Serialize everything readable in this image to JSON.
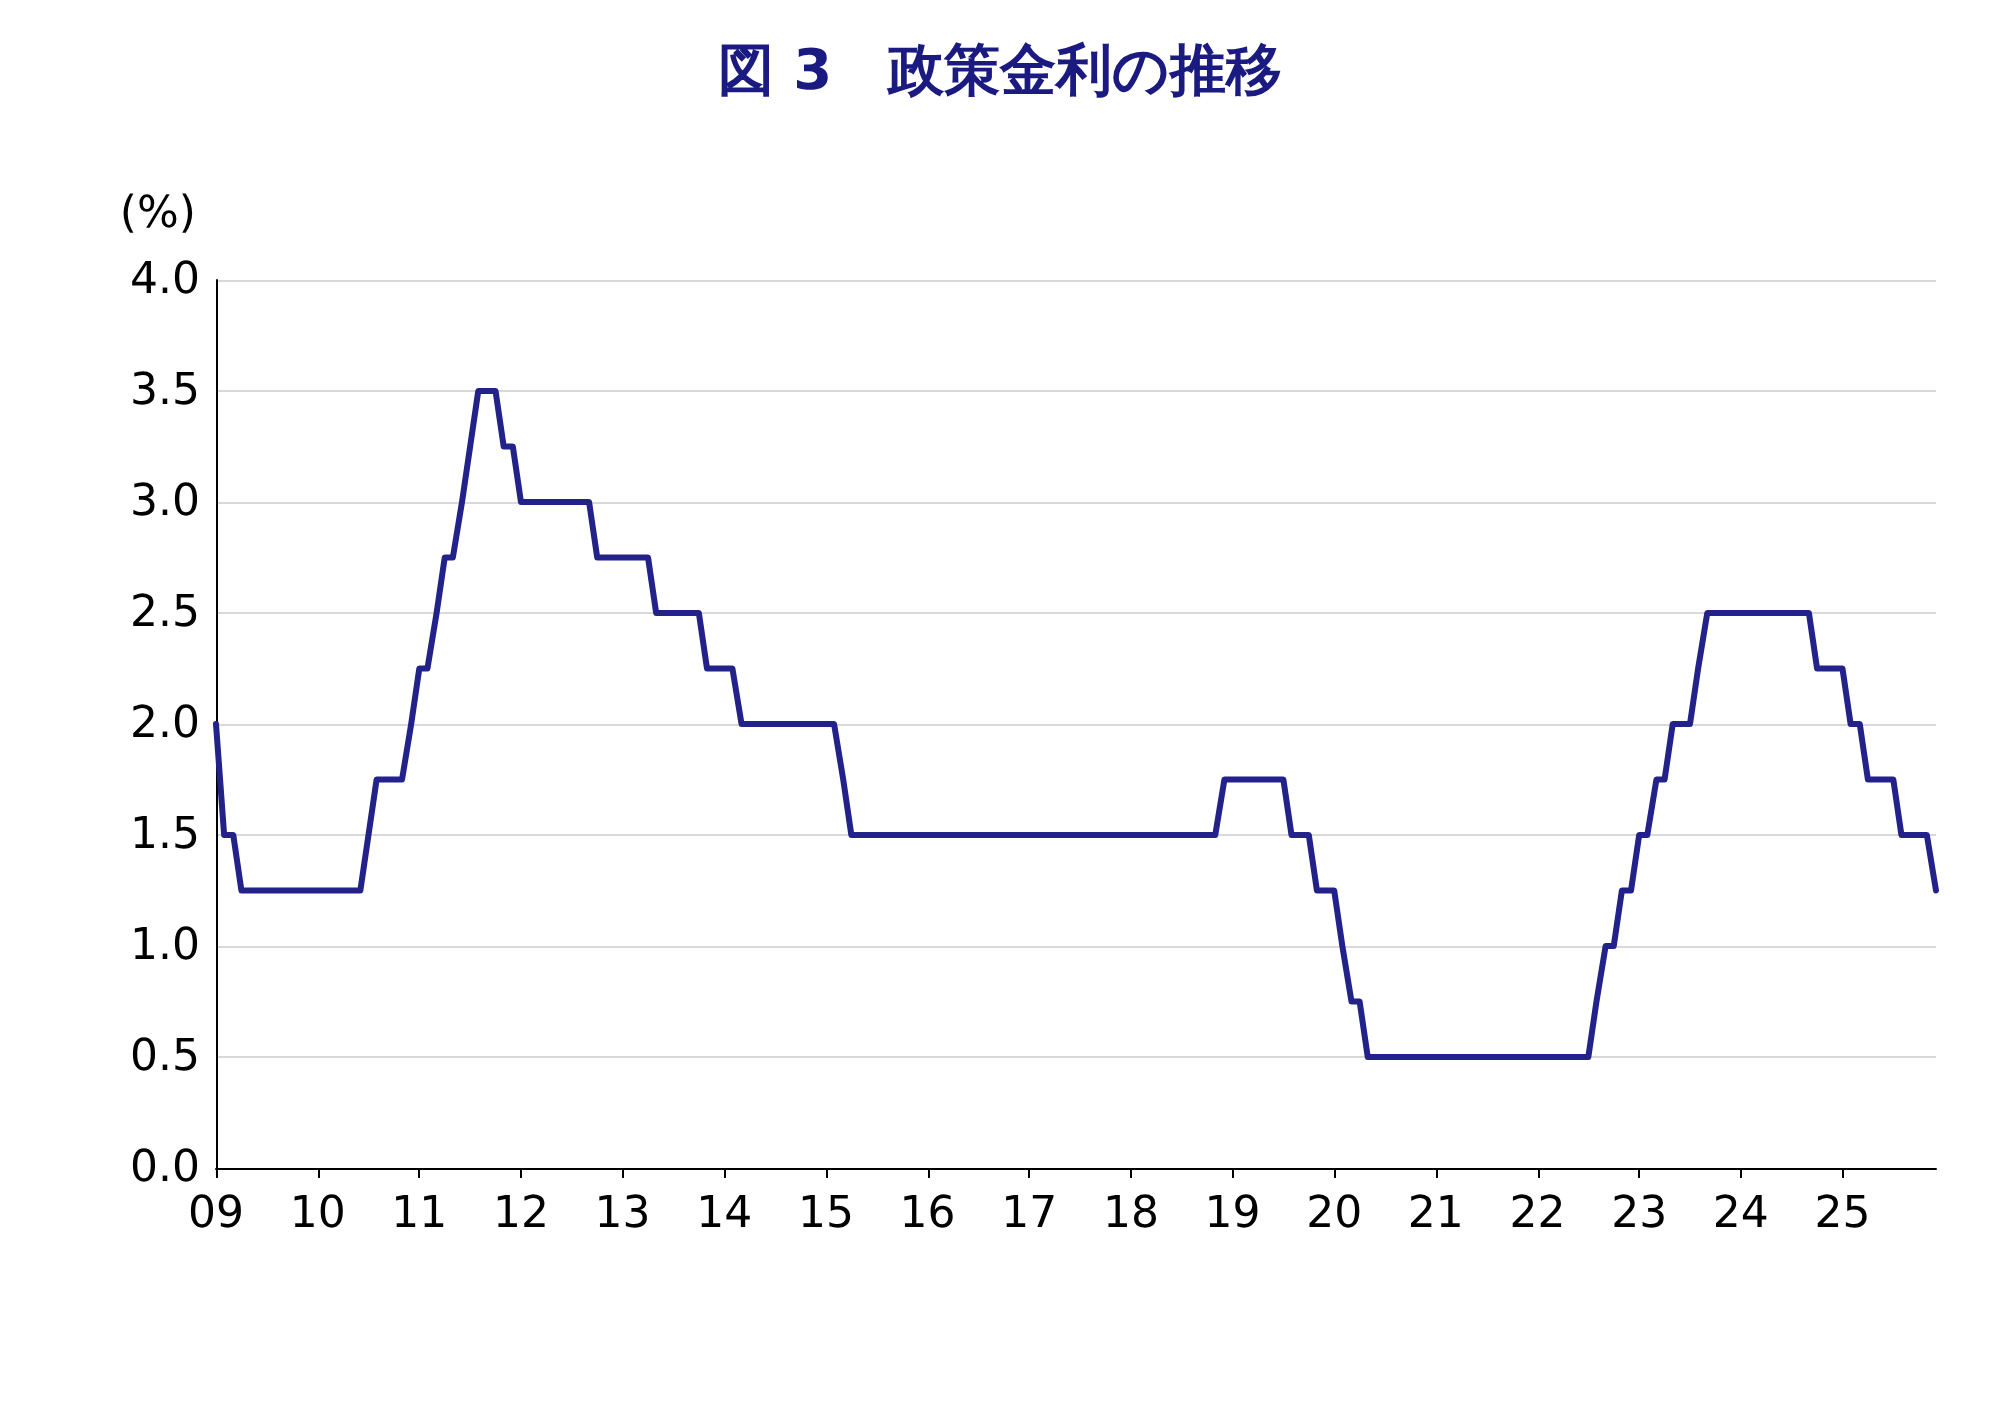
{
  "chart_data": {
    "type": "line",
    "title": "図 3　政策金利の推移",
    "ylabel": "(%)",
    "xlim": [
      2009,
      2025.92
    ],
    "xticks": [
      {
        "value": 2009,
        "label": "09"
      },
      {
        "value": 2010,
        "label": "10"
      },
      {
        "value": 2011,
        "label": "11"
      },
      {
        "value": 2012,
        "label": "12"
      },
      {
        "value": 2013,
        "label": "13"
      },
      {
        "value": 2014,
        "label": "14"
      },
      {
        "value": 2015,
        "label": "15"
      },
      {
        "value": 2016,
        "label": "16"
      },
      {
        "value": 2017,
        "label": "17"
      },
      {
        "value": 2018,
        "label": "18"
      },
      {
        "value": 2019,
        "label": "19"
      },
      {
        "value": 2020,
        "label": "20"
      },
      {
        "value": 2021,
        "label": "21"
      },
      {
        "value": 2022,
        "label": "22"
      },
      {
        "value": 2023,
        "label": "23"
      },
      {
        "value": 2024,
        "label": "24"
      },
      {
        "value": 2025,
        "label": "25"
      }
    ],
    "ylim": [
      0,
      4
    ],
    "yticks": [
      {
        "value": 0,
        "label": "0.0"
      },
      {
        "value": 0.5,
        "label": "0.5"
      },
      {
        "value": 1,
        "label": "1.0"
      },
      {
        "value": 1.5,
        "label": "1.5"
      },
      {
        "value": 2,
        "label": "2.0"
      },
      {
        "value": 2.5,
        "label": "2.5"
      },
      {
        "value": 3,
        "label": "3.0"
      },
      {
        "value": 3.5,
        "label": "3.5"
      },
      {
        "value": 4,
        "label": "4.0"
      }
    ],
    "grid": "y",
    "marker": "none",
    "line_style": "solid",
    "series": [
      {
        "color": "#22228a",
        "x": [
          2009,
          2009.08,
          2009.17,
          2009.25,
          2010.42,
          2010.5,
          2010.58,
          2010.83,
          2010.92,
          2011,
          2011.08,
          2011.17,
          2011.25,
          2011.33,
          2011.42,
          2011.5,
          2011.58,
          2011.75,
          2011.83,
          2011.92,
          2012,
          2012.67,
          2012.75,
          2013.25,
          2013.33,
          2013.75,
          2013.83,
          2014.08,
          2014.17,
          2015.08,
          2015.17,
          2015.25,
          2018.83,
          2018.92,
          2019.5,
          2019.58,
          2019.75,
          2019.83,
          2020,
          2020.08,
          2020.17,
          2020.25,
          2020.33,
          2022.5,
          2022.58,
          2022.67,
          2022.75,
          2022.83,
          2022.92,
          2023,
          2023.08,
          2023.17,
          2023.25,
          2023.33,
          2023.5,
          2023.58,
          2023.67,
          2024.67,
          2024.75,
          2025,
          2025.08,
          2025.17,
          2025.25,
          2025.5,
          2025.58,
          2025.83,
          2025.92
        ],
        "values": [
          2,
          1.5,
          1.5,
          1.25,
          1.25,
          1.5,
          1.75,
          1.75,
          2,
          2.25,
          2.25,
          2.5,
          2.75,
          2.75,
          3,
          3.25,
          3.5,
          3.5,
          3.25,
          3.25,
          3,
          3,
          2.75,
          2.75,
          2.5,
          2.5,
          2.25,
          2.25,
          2,
          2,
          1.75,
          1.5,
          1.5,
          1.75,
          1.75,
          1.5,
          1.5,
          1.25,
          1.25,
          1,
          0.75,
          0.75,
          0.5,
          0.5,
          0.75,
          1,
          1,
          1.25,
          1.25,
          1.5,
          1.5,
          1.75,
          1.75,
          2,
          2,
          2.25,
          2.5,
          2.5,
          2.25,
          2.25,
          2,
          2,
          1.75,
          1.75,
          1.5,
          1.5,
          1.25
        ]
      }
    ]
  }
}
